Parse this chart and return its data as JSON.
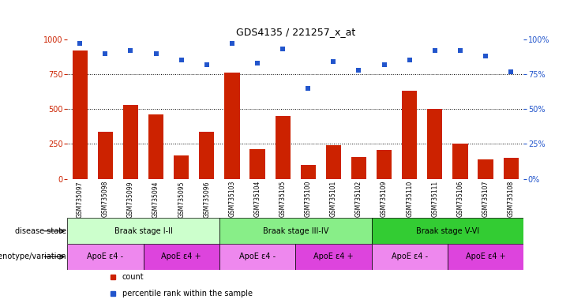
{
  "title": "GDS4135 / 221257_x_at",
  "samples": [
    "GSM735097",
    "GSM735098",
    "GSM735099",
    "GSM735094",
    "GSM735095",
    "GSM735096",
    "GSM735103",
    "GSM735104",
    "GSM735105",
    "GSM735100",
    "GSM735101",
    "GSM735102",
    "GSM735109",
    "GSM735110",
    "GSM735111",
    "GSM735106",
    "GSM735107",
    "GSM735108"
  ],
  "counts": [
    920,
    340,
    530,
    460,
    165,
    340,
    760,
    210,
    450,
    100,
    240,
    155,
    205,
    630,
    500,
    250,
    140,
    150
  ],
  "percentiles": [
    97,
    90,
    92,
    90,
    85,
    82,
    97,
    83,
    93,
    65,
    84,
    78,
    82,
    85,
    92,
    92,
    88,
    77
  ],
  "disease_stages": [
    {
      "label": "Braak stage I-II",
      "start": 0,
      "end": 6,
      "color": "#ccffcc"
    },
    {
      "label": "Braak stage III-IV",
      "start": 6,
      "end": 12,
      "color": "#88ee88"
    },
    {
      "label": "Braak stage V-VI",
      "start": 12,
      "end": 18,
      "color": "#33cc33"
    }
  ],
  "genotype_groups": [
    {
      "label": "ApoE ε4 -",
      "start": 0,
      "end": 3,
      "color": "#ee88ee"
    },
    {
      "label": "ApoE ε4 +",
      "start": 3,
      "end": 6,
      "color": "#dd44dd"
    },
    {
      "label": "ApoE ε4 -",
      "start": 6,
      "end": 9,
      "color": "#ee88ee"
    },
    {
      "label": "ApoE ε4 +",
      "start": 9,
      "end": 12,
      "color": "#dd44dd"
    },
    {
      "label": "ApoE ε4 -",
      "start": 12,
      "end": 15,
      "color": "#ee88ee"
    },
    {
      "label": "ApoE ε4 +",
      "start": 15,
      "end": 18,
      "color": "#dd44dd"
    }
  ],
  "bar_color": "#cc2200",
  "dot_color": "#2255cc",
  "ylim_left": [
    0,
    1000
  ],
  "ylim_right": [
    0,
    100
  ],
  "yticks_left": [
    0,
    250,
    500,
    750,
    1000
  ],
  "yticks_right": [
    0,
    25,
    50,
    75,
    100
  ],
  "label_disease": "disease state",
  "label_genotype": "genotype/variation",
  "legend_count": "count",
  "legend_pct": "percentile rank within the sample",
  "bar_width": 0.6
}
